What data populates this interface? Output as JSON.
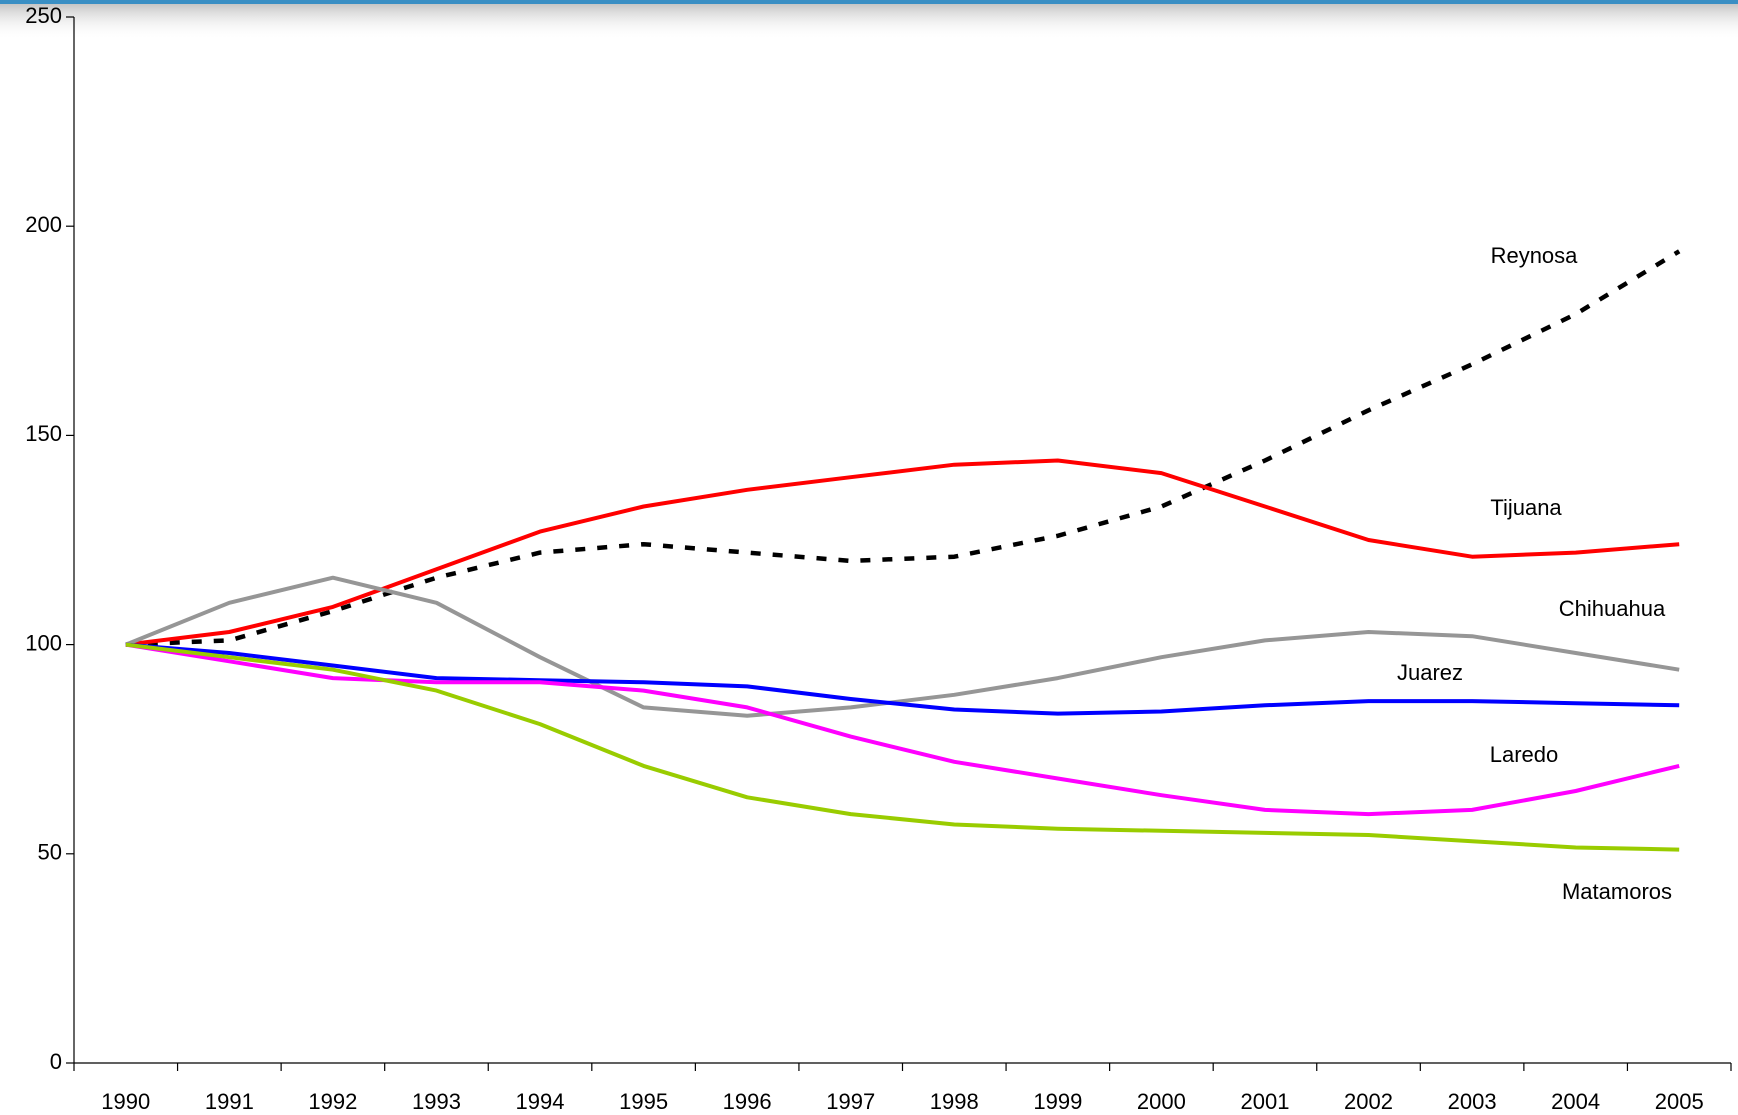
{
  "chart_data": {
    "type": "line",
    "categories": [
      "1990",
      "1991",
      "1992",
      "1993",
      "1994",
      "1995",
      "1996",
      "1997",
      "1998",
      "1999",
      "2000",
      "2001",
      "2002",
      "2003",
      "2004",
      "2005"
    ],
    "series": [
      {
        "name": "Reynosa",
        "color": "#000000",
        "dashed": true,
        "values": [
          100,
          101,
          108,
          116,
          122,
          124,
          122,
          120,
          121,
          126,
          133,
          144,
          156,
          167,
          179,
          194
        ]
      },
      {
        "name": "Tijuana",
        "color": "#ff0000",
        "values": [
          100,
          103,
          109,
          118,
          127,
          133,
          137,
          140,
          143,
          144,
          141,
          133,
          125,
          121,
          122,
          124
        ]
      },
      {
        "name": "Chihuahua",
        "color": "#969696",
        "values": [
          100,
          110,
          116,
          110,
          97,
          85,
          83,
          85,
          88,
          92,
          97,
          101,
          103,
          102,
          98,
          94
        ]
      },
      {
        "name": "Juarez",
        "color": "#0000ff",
        "values": [
          100,
          98,
          95,
          92,
          91.5,
          91,
          90,
          87,
          84.5,
          83.5,
          84,
          85.5,
          86.5,
          86.5,
          86,
          85.5
        ]
      },
      {
        "name": "Laredo",
        "color": "#ff00ff",
        "values": [
          100,
          96,
          92,
          91,
          91,
          89,
          85,
          78,
          72,
          68,
          64,
          60.5,
          59.5,
          60.5,
          65,
          71
        ]
      },
      {
        "name": "Matamoros",
        "color": "#99cc00",
        "values": [
          100,
          97,
          94,
          89,
          81,
          71,
          63.5,
          59.5,
          57,
          56,
          55.5,
          55,
          54.5,
          53,
          51.5,
          51
        ]
      }
    ],
    "ylim": [
      0,
      250
    ],
    "yticks": [
      0,
      50,
      100,
      150,
      200,
      250
    ],
    "grid": false
  }
}
